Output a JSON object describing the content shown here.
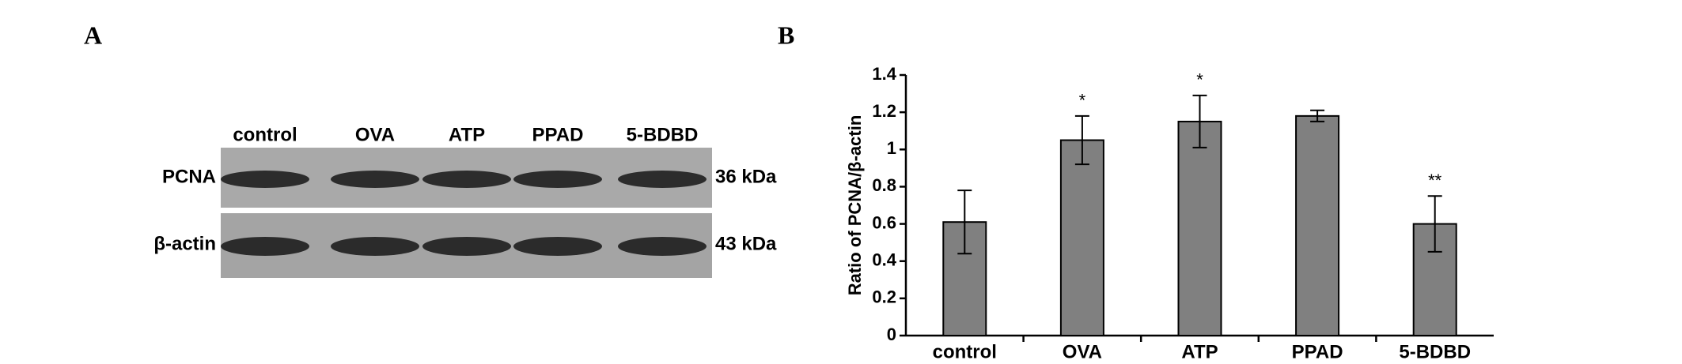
{
  "blot": {
    "label": "A",
    "lanes": [
      "control",
      "OVA",
      "ATP",
      "PPAD",
      "5-BDBD"
    ],
    "rows": [
      {
        "protein": "PCNA",
        "size": "36 kDa"
      },
      {
        "protein": "β-actin",
        "size": "43 kDa"
      }
    ]
  },
  "chart_data": {
    "type": "bar",
    "label": "B",
    "ylabel": "Ratio of PCNA/β-actin",
    "categories": [
      "control",
      "OVA",
      "ATP",
      "PPAD",
      "5-BDBD"
    ],
    "values": [
      0.61,
      1.05,
      1.15,
      1.18,
      0.6
    ],
    "errors": [
      0.17,
      0.13,
      0.14,
      0.03,
      0.15
    ],
    "significance": [
      null,
      "*",
      "*",
      null,
      "**"
    ],
    "color": "#808080",
    "ylim": [
      0,
      1.4
    ],
    "yticks": [
      0,
      0.2,
      0.4,
      0.6,
      0.8,
      1,
      1.2,
      1.4
    ]
  }
}
